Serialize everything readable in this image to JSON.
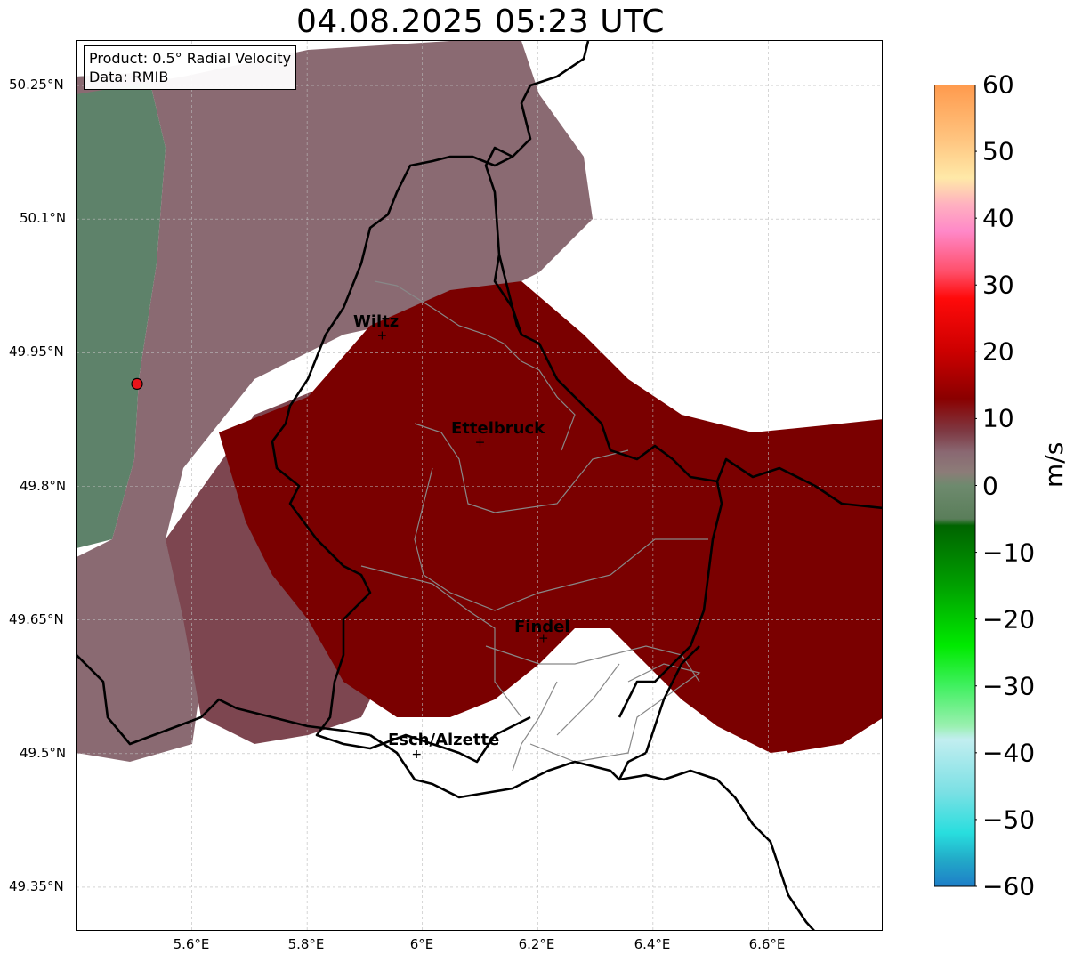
{
  "title": "04.08.2025 05:23 UTC",
  "info": {
    "product": "Product: 0.5° Radial Velocity",
    "source": "Data: RMIB"
  },
  "lat_labels": [
    "50.25°N",
    "50.1°N",
    "49.95°N",
    "49.8°N",
    "49.65°N",
    "49.5°N",
    "49.35°N"
  ],
  "lon_labels": [
    "5.6°E",
    "5.8°E",
    "6°E",
    "6.2°E",
    "6.4°E",
    "6.6°E"
  ],
  "cities": [
    {
      "name": "Wiltz",
      "lon": 5.93,
      "lat": 49.97
    },
    {
      "name": "Ettelbruck",
      "lon": 6.1,
      "lat": 49.85
    },
    {
      "name": "Findel",
      "lon": 6.21,
      "lat": 49.63
    },
    {
      "name": "Esch/Alzette",
      "lon": 5.99,
      "lat": 49.5
    }
  ],
  "radar_site": {
    "lon": 5.505,
    "lat": 49.915,
    "color": "#e8141a"
  },
  "map_extent": {
    "lon": [
      5.4,
      6.8
    ],
    "lat": [
      49.3,
      50.3
    ]
  },
  "colorbar": {
    "unit": "m/s",
    "min": -60,
    "max": 60,
    "ticks": [
      "60",
      "50",
      "40",
      "30",
      "20",
      "10",
      "0",
      "−10",
      "−20",
      "−30",
      "−40",
      "−50",
      "−60"
    ],
    "tick_values": [
      60,
      50,
      40,
      30,
      20,
      10,
      0,
      -10,
      -20,
      -30,
      -40,
      -50,
      -60
    ],
    "stops": [
      {
        "v": 60,
        "c": "#ff9a4d"
      },
      {
        "v": 52,
        "c": "#ffc37e"
      },
      {
        "v": 46,
        "c": "#ffe9a8"
      },
      {
        "v": 42,
        "c": "#ffb0c0"
      },
      {
        "v": 38,
        "c": "#ff88c8"
      },
      {
        "v": 32,
        "c": "#ff4f6a"
      },
      {
        "v": 28,
        "c": "#ff0a0a"
      },
      {
        "v": 20,
        "c": "#cc0000"
      },
      {
        "v": 13,
        "c": "#8a0000"
      },
      {
        "v": 8,
        "c": "#7e3a44"
      },
      {
        "v": 5,
        "c": "#8a6872"
      },
      {
        "v": 2,
        "c": "#8c7c78"
      },
      {
        "v": 0,
        "c": "#6e8a6e"
      },
      {
        "v": -5,
        "c": "#5a7e5a"
      },
      {
        "v": -6,
        "c": "#006400"
      },
      {
        "v": -15,
        "c": "#00a000"
      },
      {
        "v": -24,
        "c": "#00ea00"
      },
      {
        "v": -30,
        "c": "#40f060"
      },
      {
        "v": -36,
        "c": "#9af0b0"
      },
      {
        "v": -38,
        "c": "#c2eef0"
      },
      {
        "v": -46,
        "c": "#7ae0e4"
      },
      {
        "v": -52,
        "c": "#28dede"
      },
      {
        "v": -56,
        "c": "#22aac8"
      },
      {
        "v": -60,
        "c": "#1e7ec8"
      }
    ]
  },
  "colors": {
    "strong_outbound": "#7a0000",
    "weak_outbound": "#7d4650",
    "neutral": "#8a6a72",
    "inbound": "#5e826a",
    "strong_inbound": "#1a7a1a",
    "border": "#000000",
    "canton": "#888888",
    "grid": "#bbbbbb"
  }
}
